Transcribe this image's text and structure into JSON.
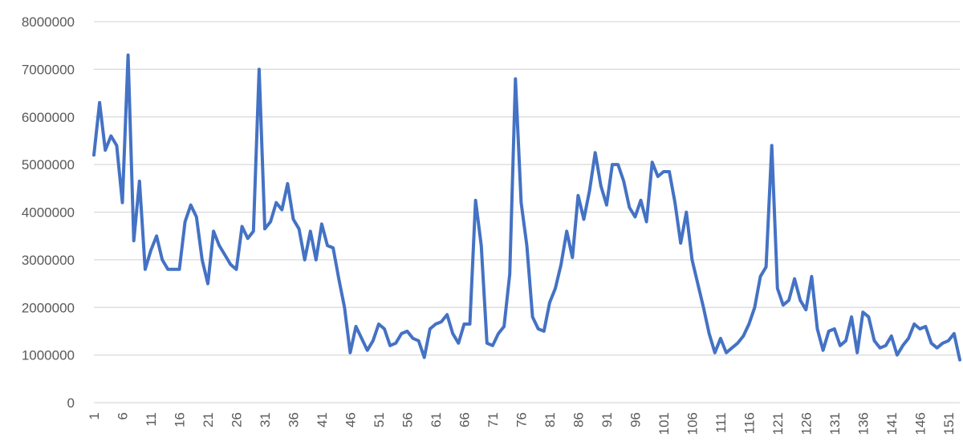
{
  "chart_data": {
    "type": "line",
    "title": "",
    "xlabel": "",
    "ylabel": "",
    "ylim": [
      0,
      8000000
    ],
    "yticks": [
      "0",
      "1000000",
      "2000000",
      "3000000",
      "4000000",
      "5000000",
      "6000000",
      "7000000",
      "8000000"
    ],
    "xticks": [
      "1",
      "6",
      "11",
      "16",
      "21",
      "26",
      "31",
      "36",
      "41",
      "46",
      "51",
      "56",
      "61",
      "66",
      "71",
      "76",
      "81",
      "86",
      "91",
      "96",
      "101",
      "106",
      "111",
      "116",
      "121",
      "126",
      "131",
      "136",
      "141",
      "146",
      "151"
    ],
    "grid": true,
    "legend": "none",
    "colors": {
      "series": "#4472c4",
      "grid": "#d9d9d9",
      "text": "#595959"
    },
    "series": [
      {
        "x": [
          1,
          2,
          3,
          4,
          5,
          6,
          7,
          8,
          9,
          10,
          11,
          12,
          13,
          14,
          15,
          16,
          17,
          18,
          19,
          20,
          21,
          22,
          23,
          24,
          25,
          26,
          27,
          28,
          29,
          30,
          31,
          32,
          33,
          34,
          35,
          36,
          37,
          38,
          39,
          40,
          41,
          42,
          43,
          44,
          45,
          46,
          47,
          48,
          49,
          50,
          51,
          52,
          53,
          54,
          55,
          56,
          57,
          58,
          59,
          60,
          61,
          62,
          63,
          64,
          65,
          66,
          67,
          68,
          69,
          70,
          71,
          72,
          73,
          74,
          75,
          76,
          77,
          78,
          79,
          80,
          81,
          82,
          83,
          84,
          85,
          86,
          87,
          88,
          89,
          90,
          91,
          92,
          93,
          94,
          95,
          96,
          97,
          98,
          99,
          100,
          101,
          102,
          103,
          104,
          105,
          106,
          107,
          108,
          109,
          110,
          111,
          112,
          113,
          114,
          115,
          116,
          117,
          118,
          119,
          120,
          121,
          122,
          123,
          124,
          125,
          126,
          127,
          128,
          129,
          130,
          131,
          132,
          133,
          134,
          135,
          136,
          137,
          138,
          139,
          140,
          141,
          142,
          143,
          144,
          145,
          146,
          147,
          148,
          149,
          150,
          151,
          152,
          153
        ],
        "y": [
          5200000,
          6300000,
          5300000,
          5600000,
          5400000,
          4200000,
          7300000,
          3400000,
          4650000,
          2800000,
          3200000,
          3500000,
          3000000,
          2800000,
          2800000,
          2800000,
          3800000,
          4150000,
          3900000,
          3000000,
          2500000,
          3600000,
          3300000,
          3100000,
          2900000,
          2800000,
          3700000,
          3450000,
          3600000,
          7000000,
          3650000,
          3800000,
          4200000,
          4050000,
          4600000,
          3850000,
          3650000,
          3000000,
          3600000,
          3000000,
          3750000,
          3300000,
          3250000,
          2600000,
          2000000,
          1050000,
          1600000,
          1350000,
          1100000,
          1300000,
          1650000,
          1550000,
          1200000,
          1250000,
          1450000,
          1500000,
          1350000,
          1300000,
          950000,
          1550000,
          1650000,
          1700000,
          1850000,
          1450000,
          1250000,
          1650000,
          1650000,
          4250000,
          3300000,
          1250000,
          1200000,
          1450000,
          1600000,
          2700000,
          6800000,
          4200000,
          3300000,
          1800000,
          1550000,
          1500000,
          2100000,
          2400000,
          2900000,
          3600000,
          3050000,
          4350000,
          3850000,
          4450000,
          5250000,
          4550000,
          4150000,
          5000000,
          5000000,
          4650000,
          4100000,
          3900000,
          4250000,
          3800000,
          5050000,
          4750000,
          4850000,
          4850000,
          4200000,
          3350000,
          4000000,
          3000000,
          2500000,
          2000000,
          1450000,
          1050000,
          1350000,
          1050000,
          1150000,
          1250000,
          1400000,
          1650000,
          2000000,
          2650000,
          2850000,
          5400000,
          2400000,
          2050000,
          2150000,
          2600000,
          2150000,
          1950000,
          2650000,
          1550000,
          1100000,
          1500000,
          1550000,
          1200000,
          1300000,
          1800000,
          1050000,
          1900000,
          1800000,
          1300000,
          1150000,
          1200000,
          1400000,
          1000000,
          1200000,
          1350000,
          1650000,
          1550000,
          1600000,
          1250000,
          1150000,
          1250000,
          1300000,
          1450000,
          900000
        ]
      }
    ]
  }
}
